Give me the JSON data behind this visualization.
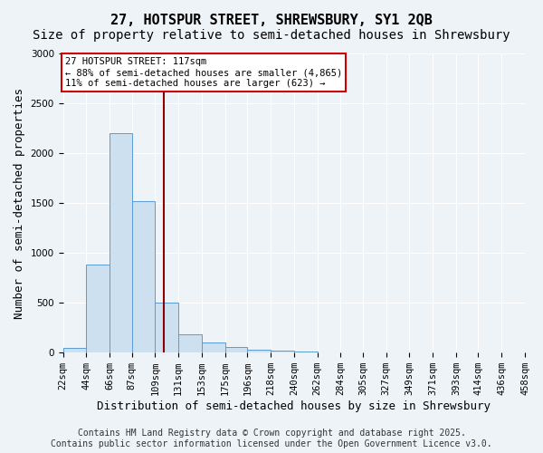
{
  "title_line1": "27, HOTSPUR STREET, SHREWSBURY, SY1 2QB",
  "title_line2": "Size of property relative to semi-detached houses in Shrewsbury",
  "xlabel": "Distribution of semi-detached houses by size in Shrewsbury",
  "ylabel": "Number of semi-detached properties",
  "footnote": "Contains HM Land Registry data © Crown copyright and database right 2025.\nContains public sector information licensed under the Open Government Licence v3.0.",
  "bin_labels": [
    "22sqm",
    "44sqm",
    "66sqm",
    "87sqm",
    "109sqm",
    "131sqm",
    "153sqm",
    "175sqm",
    "196sqm",
    "218sqm",
    "240sqm",
    "262sqm",
    "284sqm",
    "305sqm",
    "327sqm",
    "349sqm",
    "371sqm",
    "393sqm",
    "414sqm",
    "436sqm",
    "458sqm"
  ],
  "bin_edges": [
    22,
    44,
    66,
    87,
    109,
    131,
    153,
    175,
    196,
    218,
    240,
    262,
    284,
    305,
    327,
    349,
    371,
    393,
    414,
    436,
    458
  ],
  "bar_heights": [
    50,
    880,
    2200,
    1520,
    500,
    180,
    100,
    55,
    30,
    20,
    10,
    5,
    0,
    0,
    0,
    0,
    0,
    0,
    0,
    0
  ],
  "bar_color": "#cce0f0",
  "bar_edge_color": "#5b9bd5",
  "vline_x": 117,
  "vline_color": "#8b0000",
  "annotation_text": "27 HOTSPUR STREET: 117sqm\n← 88% of semi-detached houses are smaller (4,865)\n11% of semi-detached houses are larger (623) →",
  "annotation_box_color": "#ffffff",
  "annotation_box_edge": "#cc0000",
  "ylim": [
    0,
    3000
  ],
  "background_color": "#eef3f8",
  "grid_color": "#ffffff",
  "title_fontsize": 11,
  "subtitle_fontsize": 10,
  "axis_label_fontsize": 9,
  "tick_fontsize": 7.5,
  "footnote_fontsize": 7
}
